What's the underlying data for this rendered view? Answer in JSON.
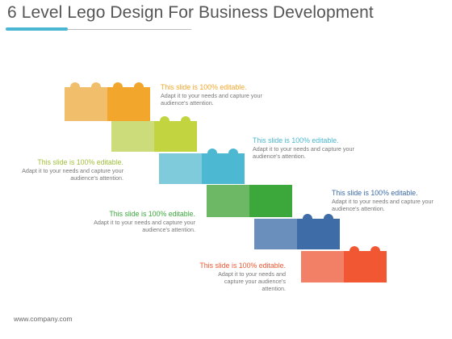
{
  "title": "6 Level Lego Design For Business Development",
  "footer": "www.company.com",
  "bricks": [
    {
      "name": "orange",
      "light": "#f1be6b",
      "dark": "#f2a72c"
    },
    {
      "name": "olive",
      "light": "#cddc7a",
      "dark": "#c2d43f"
    },
    {
      "name": "blue",
      "light": "#7fcadb",
      "dark": "#4cb8d2"
    },
    {
      "name": "green",
      "light": "#6cb865",
      "dark": "#3ca83c"
    },
    {
      "name": "navy",
      "light": "#6b8fbd",
      "dark": "#3e6ca6"
    },
    {
      "name": "red",
      "light": "#f28066",
      "dark": "#f25733"
    }
  ],
  "captions": [
    {
      "heading": "This slide is 100% editable.",
      "body": "Adapt it to your needs and capture your audience's attention.",
      "color": "#f2a72c"
    },
    {
      "heading": "This slide is 100% editable.",
      "body": "Adapt it to your needs and capture your audience's attention.",
      "color": "#9fbf3c"
    },
    {
      "heading": "This slide is 100% editable.",
      "body": "Adapt it to your needs and capture your audience's attention.",
      "color": "#4cb8d2"
    },
    {
      "heading": "This slide is 100% editable.",
      "body": "Adapt it to your needs and capture your audience's attention.",
      "color": "#3ca83c"
    },
    {
      "heading": "This slide is 100% editable.",
      "body": "Adapt it to your needs and capture your audience's attention.",
      "color": "#3e6ca6"
    },
    {
      "heading": "This slide is 100% editable.",
      "body": "Adapt it to your needs and capture your audience's attention.",
      "color": "#f25733"
    }
  ]
}
